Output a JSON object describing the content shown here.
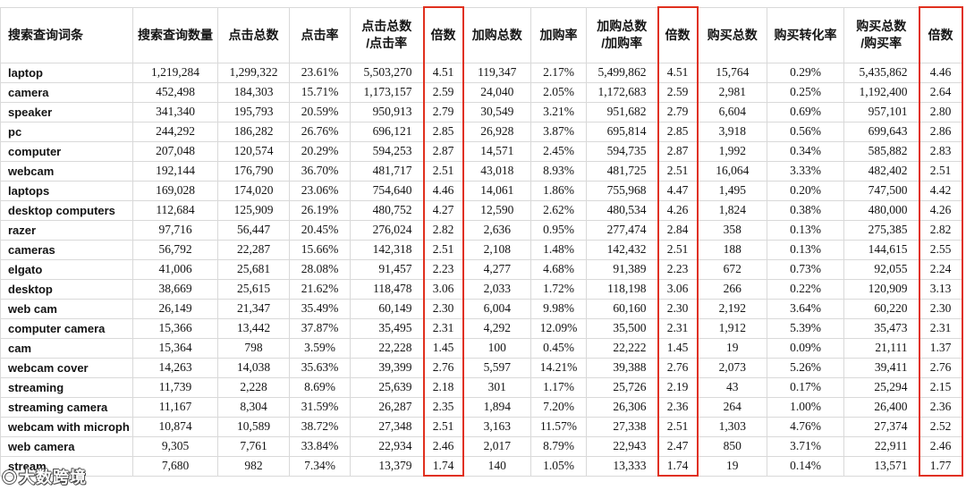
{
  "colors": {
    "highlight_red": "#e0301e",
    "grid_line": "#d9d9d9",
    "text": "#141414"
  },
  "watermark": {
    "text": "大数跨境"
  },
  "annotations": {
    "red_boxed_columns": [
      "倍数",
      "倍数",
      "倍数"
    ]
  },
  "table": {
    "headers": [
      "搜索查询词条",
      "搜索查询数量",
      "点击总数",
      "点击率",
      "点击总数\n/点击率",
      "倍数",
      "加购总数",
      "加购率",
      "加购总数\n/加购率",
      "倍数",
      "购买总数",
      "购买转化率",
      "购买总数\n/购买率",
      "倍数"
    ],
    "rows": [
      {
        "term": "laptop",
        "values": [
          "1,219,284",
          "1,299,322",
          "23.61%",
          "5,503,270",
          "4.51",
          "119,347",
          "2.17%",
          "5,499,862",
          "4.51",
          "15,764",
          "0.29%",
          "5,435,862",
          "4.46"
        ]
      },
      {
        "term": "camera",
        "values": [
          "452,498",
          "184,303",
          "15.71%",
          "1,173,157",
          "2.59",
          "24,040",
          "2.05%",
          "1,172,683",
          "2.59",
          "2,981",
          "0.25%",
          "1,192,400",
          "2.64"
        ]
      },
      {
        "term": "speaker",
        "values": [
          "341,340",
          "195,793",
          "20.59%",
          "950,913",
          "2.79",
          "30,549",
          "3.21%",
          "951,682",
          "2.79",
          "6,604",
          "0.69%",
          "957,101",
          "2.80"
        ]
      },
      {
        "term": "pc",
        "values": [
          "244,292",
          "186,282",
          "26.76%",
          "696,121",
          "2.85",
          "26,928",
          "3.87%",
          "695,814",
          "2.85",
          "3,918",
          "0.56%",
          "699,643",
          "2.86"
        ]
      },
      {
        "term": "computer",
        "values": [
          "207,048",
          "120,574",
          "20.29%",
          "594,253",
          "2.87",
          "14,571",
          "2.45%",
          "594,735",
          "2.87",
          "1,992",
          "0.34%",
          "585,882",
          "2.83"
        ]
      },
      {
        "term": "webcam",
        "values": [
          "192,144",
          "176,790",
          "36.70%",
          "481,717",
          "2.51",
          "43,018",
          "8.93%",
          "481,725",
          "2.51",
          "16,064",
          "3.33%",
          "482,402",
          "2.51"
        ]
      },
      {
        "term": "laptops",
        "values": [
          "169,028",
          "174,020",
          "23.06%",
          "754,640",
          "4.46",
          "14,061",
          "1.86%",
          "755,968",
          "4.47",
          "1,495",
          "0.20%",
          "747,500",
          "4.42"
        ]
      },
      {
        "term": "desktop computers",
        "values": [
          "112,684",
          "125,909",
          "26.19%",
          "480,752",
          "4.27",
          "12,590",
          "2.62%",
          "480,534",
          "4.26",
          "1,824",
          "0.38%",
          "480,000",
          "4.26"
        ]
      },
      {
        "term": "razer",
        "values": [
          "97,716",
          "56,447",
          "20.45%",
          "276,024",
          "2.82",
          "2,636",
          "0.95%",
          "277,474",
          "2.84",
          "358",
          "0.13%",
          "275,385",
          "2.82"
        ]
      },
      {
        "term": "cameras",
        "values": [
          "56,792",
          "22,287",
          "15.66%",
          "142,318",
          "2.51",
          "2,108",
          "1.48%",
          "142,432",
          "2.51",
          "188",
          "0.13%",
          "144,615",
          "2.55"
        ]
      },
      {
        "term": "elgato",
        "values": [
          "41,006",
          "25,681",
          "28.08%",
          "91,457",
          "2.23",
          "4,277",
          "4.68%",
          "91,389",
          "2.23",
          "672",
          "0.73%",
          "92,055",
          "2.24"
        ]
      },
      {
        "term": "desktop",
        "values": [
          "38,669",
          "25,615",
          "21.62%",
          "118,478",
          "3.06",
          "2,033",
          "1.72%",
          "118,198",
          "3.06",
          "266",
          "0.22%",
          "120,909",
          "3.13"
        ]
      },
      {
        "term": "web cam",
        "values": [
          "26,149",
          "21,347",
          "35.49%",
          "60,149",
          "2.30",
          "6,004",
          "9.98%",
          "60,160",
          "2.30",
          "2,192",
          "3.64%",
          "60,220",
          "2.30"
        ]
      },
      {
        "term": "computer camera",
        "values": [
          "15,366",
          "13,442",
          "37.87%",
          "35,495",
          "2.31",
          "4,292",
          "12.09%",
          "35,500",
          "2.31",
          "1,912",
          "5.39%",
          "35,473",
          "2.31"
        ]
      },
      {
        "term": "cam",
        "values": [
          "15,364",
          "798",
          "3.59%",
          "22,228",
          "1.45",
          "100",
          "0.45%",
          "22,222",
          "1.45",
          "19",
          "0.09%",
          "21,111",
          "1.37"
        ]
      },
      {
        "term": "webcam cover",
        "values": [
          "14,263",
          "14,038",
          "35.63%",
          "39,399",
          "2.76",
          "5,597",
          "14.21%",
          "39,388",
          "2.76",
          "2,073",
          "5.26%",
          "39,411",
          "2.76"
        ]
      },
      {
        "term": "streaming",
        "values": [
          "11,739",
          "2,228",
          "8.69%",
          "25,639",
          "2.18",
          "301",
          "1.17%",
          "25,726",
          "2.19",
          "43",
          "0.17%",
          "25,294",
          "2.15"
        ]
      },
      {
        "term": "streaming camera",
        "values": [
          "11,167",
          "8,304",
          "31.59%",
          "26,287",
          "2.35",
          "1,894",
          "7.20%",
          "26,306",
          "2.36",
          "264",
          "1.00%",
          "26,400",
          "2.36"
        ]
      },
      {
        "term": "webcam with microph",
        "values": [
          "10,874",
          "10,589",
          "38.72%",
          "27,348",
          "2.51",
          "3,163",
          "11.57%",
          "27,338",
          "2.51",
          "1,303",
          "4.76%",
          "27,374",
          "2.52"
        ]
      },
      {
        "term": "web camera",
        "values": [
          "9,305",
          "7,761",
          "33.84%",
          "22,934",
          "2.46",
          "2,017",
          "8.79%",
          "22,943",
          "2.47",
          "850",
          "3.71%",
          "22,911",
          "2.46"
        ]
      },
      {
        "term": "stream",
        "values": [
          "7,680",
          "982",
          "7.34%",
          "13,379",
          "1.74",
          "140",
          "1.05%",
          "13,333",
          "1.74",
          "19",
          "0.14%",
          "13,571",
          "1.77"
        ]
      }
    ]
  }
}
